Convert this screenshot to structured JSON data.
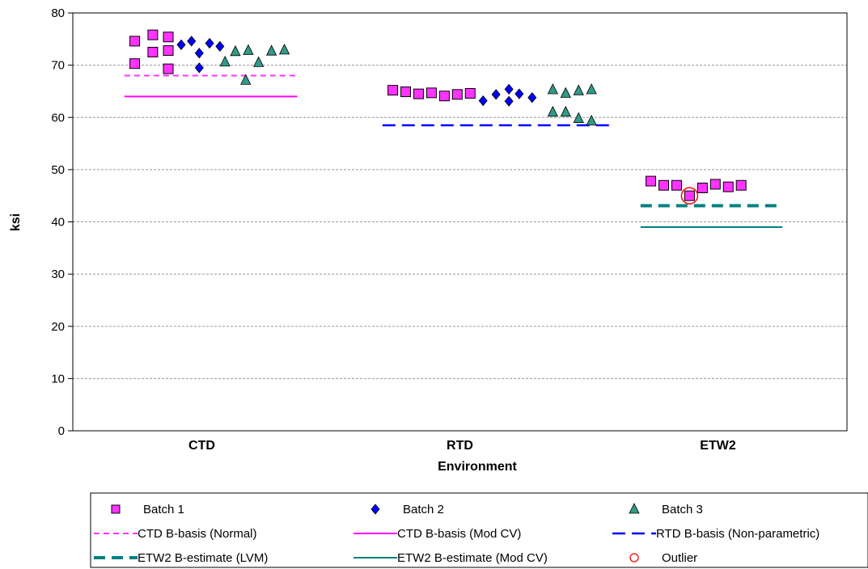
{
  "chart_data": {
    "type": "scatter",
    "ylabel": "ksi",
    "xlabel": "Environment",
    "ylim": [
      0,
      80
    ],
    "yticks": [
      0,
      10,
      20,
      30,
      40,
      50,
      60,
      70,
      80
    ],
    "grid": true,
    "legend_position": "bottom",
    "categories": [
      "CTD",
      "RTD",
      "ETW2"
    ],
    "series": [
      {
        "name": "Batch 1",
        "marker": "square",
        "color": "#ff33ff",
        "points": [
          {
            "x": 0.74,
            "y": 74.6
          },
          {
            "x": 0.74,
            "y": 70.3
          },
          {
            "x": 0.81,
            "y": 75.8
          },
          {
            "x": 0.81,
            "y": 72.5
          },
          {
            "x": 0.87,
            "y": 75.4
          },
          {
            "x": 0.87,
            "y": 72.8
          },
          {
            "x": 0.87,
            "y": 69.3
          },
          {
            "x": 1.74,
            "y": 65.2
          },
          {
            "x": 1.79,
            "y": 64.9
          },
          {
            "x": 1.84,
            "y": 64.5
          },
          {
            "x": 1.89,
            "y": 64.7
          },
          {
            "x": 1.94,
            "y": 64.1
          },
          {
            "x": 1.99,
            "y": 64.4
          },
          {
            "x": 2.04,
            "y": 64.6
          },
          {
            "x": 2.74,
            "y": 47.8
          },
          {
            "x": 2.79,
            "y": 47.0
          },
          {
            "x": 2.84,
            "y": 47.0
          },
          {
            "x": 2.89,
            "y": 45.0
          },
          {
            "x": 2.94,
            "y": 46.5
          },
          {
            "x": 2.99,
            "y": 47.2
          },
          {
            "x": 3.04,
            "y": 46.7
          },
          {
            "x": 3.09,
            "y": 47.0
          }
        ]
      },
      {
        "name": "Batch 2",
        "marker": "diamond",
        "color": "#0000ff",
        "points": [
          {
            "x": 0.92,
            "y": 73.9
          },
          {
            "x": 0.96,
            "y": 74.6
          },
          {
            "x": 0.99,
            "y": 72.3
          },
          {
            "x": 0.99,
            "y": 69.5
          },
          {
            "x": 1.03,
            "y": 74.2
          },
          {
            "x": 1.07,
            "y": 73.6
          },
          {
            "x": 2.09,
            "y": 63.2
          },
          {
            "x": 2.14,
            "y": 64.4
          },
          {
            "x": 2.19,
            "y": 65.4
          },
          {
            "x": 2.19,
            "y": 63.1
          },
          {
            "x": 2.23,
            "y": 64.5
          },
          {
            "x": 2.28,
            "y": 63.8
          }
        ]
      },
      {
        "name": "Batch 3",
        "marker": "triangle",
        "color": "#339988",
        "points": [
          {
            "x": 1.09,
            "y": 70.6
          },
          {
            "x": 1.13,
            "y": 72.6
          },
          {
            "x": 1.17,
            "y": 67.1
          },
          {
            "x": 1.18,
            "y": 72.8
          },
          {
            "x": 1.22,
            "y": 70.5
          },
          {
            "x": 1.27,
            "y": 72.7
          },
          {
            "x": 1.32,
            "y": 72.9
          },
          {
            "x": 2.36,
            "y": 65.3
          },
          {
            "x": 2.36,
            "y": 61.0
          },
          {
            "x": 2.41,
            "y": 64.6
          },
          {
            "x": 2.41,
            "y": 61.0
          },
          {
            "x": 2.46,
            "y": 65.1
          },
          {
            "x": 2.46,
            "y": 59.8
          },
          {
            "x": 2.51,
            "y": 65.3
          },
          {
            "x": 2.51,
            "y": 59.3
          }
        ]
      },
      {
        "name": "Outlier",
        "marker": "open-circle",
        "color": "#ff0000",
        "points": [
          {
            "x": 2.89,
            "y": 45.0
          }
        ]
      }
    ],
    "reference_lines": [
      {
        "name": "CTD B-basis (Normal)",
        "y": 68.0,
        "x_start": 0.7,
        "x_end": 1.37,
        "color": "#ff33ff",
        "style": "dashed-short"
      },
      {
        "name": "CTD B-basis (Mod CV)",
        "y": 64.0,
        "x_start": 0.7,
        "x_end": 1.37,
        "color": "#ff00ff",
        "style": "solid"
      },
      {
        "name": "RTD B-basis (Non-parametric)",
        "y": 58.5,
        "x_start": 1.7,
        "x_end": 2.6,
        "color": "#0000ff",
        "style": "dashed-long"
      },
      {
        "name": "ETW2 B-estimate (LVM)",
        "y": 43.1,
        "x_start": 2.7,
        "x_end": 3.25,
        "color": "#008080",
        "style": "dashed-thick"
      },
      {
        "name": "ETW2 B-estimate (Mod CV)",
        "y": 39.0,
        "x_start": 2.7,
        "x_end": 3.25,
        "color": "#008080",
        "style": "solid"
      }
    ]
  },
  "legend": {
    "items": [
      {
        "label": "Batch 1",
        "kind": "marker",
        "ref": "Batch 1"
      },
      {
        "label": "Batch 2",
        "kind": "marker",
        "ref": "Batch 2"
      },
      {
        "label": "Batch 3",
        "kind": "marker",
        "ref": "Batch 3"
      },
      {
        "label": "CTD B-basis (Normal)",
        "kind": "line",
        "ref": "CTD B-basis (Normal)"
      },
      {
        "label": "CTD B-basis (Mod CV)",
        "kind": "line",
        "ref": "CTD B-basis (Mod CV)"
      },
      {
        "label": "RTD B-basis (Non-parametric)",
        "kind": "line",
        "ref": "RTD B-basis (Non-parametric)"
      },
      {
        "label": "ETW2 B-estimate (LVM)",
        "kind": "line",
        "ref": "ETW2 B-estimate (LVM)"
      },
      {
        "label": "ETW2 B-estimate (Mod CV)",
        "kind": "line",
        "ref": "ETW2 B-estimate (Mod CV)"
      },
      {
        "label": "Outlier",
        "kind": "marker",
        "ref": "Outlier"
      }
    ]
  }
}
